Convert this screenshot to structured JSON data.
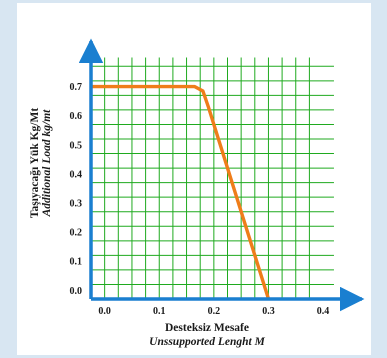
{
  "colors": {
    "grid": "#1faa1f",
    "axis": "#1a7fd0",
    "line": "#ef7d1a",
    "background": "#d8e6f2"
  },
  "chart_data": {
    "type": "line",
    "xlabel": "Desteksiz Mesafe",
    "xlabel_sub": "Unssupported Lenght M",
    "ylabel": "Taşıyacağı Yük Kg/Mt",
    "ylabel_sub": "Additional Load kg/mt",
    "x_ticks": [
      "0.0",
      "0.1",
      "0.2",
      "0.3",
      "0.4"
    ],
    "y_ticks": [
      "0.0",
      "0.1",
      "0.2",
      "0.3",
      "0.4",
      "0.5",
      "0.6",
      "0.7"
    ],
    "xlim": [
      -0.025,
      0.475
    ],
    "ylim": [
      -0.03,
      0.85
    ],
    "grid": true,
    "series": [
      {
        "x": [
          -0.025,
          0.165,
          0.18,
          0.19,
          0.3
        ],
        "y": [
          0.7,
          0.7,
          0.685,
          0.63,
          -0.03
        ]
      }
    ]
  }
}
